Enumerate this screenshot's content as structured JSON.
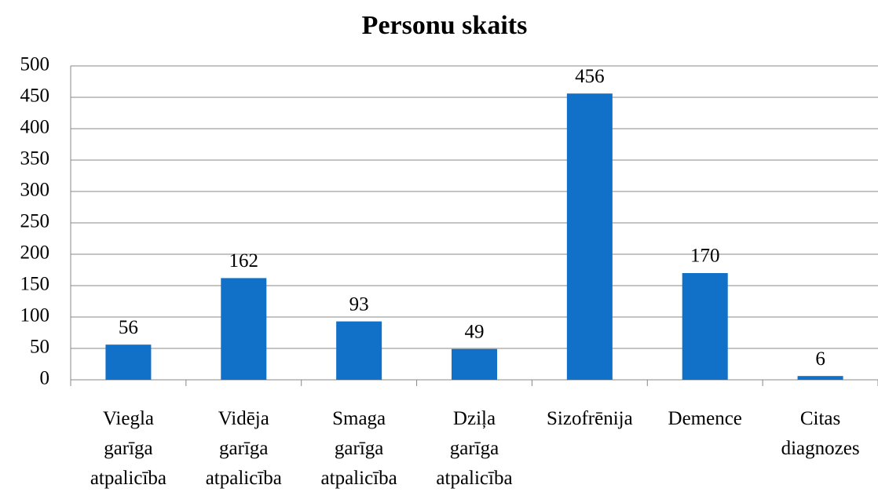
{
  "chart_data": {
    "type": "bar",
    "title": "Personu skaits",
    "categories": [
      "Viegla garīga atpalicība",
      "Vidēja garīga atpalicība",
      "Smaga garīga atpalicība",
      "Dziļa garīga atpalicība",
      "Sizofrēnija",
      "Demence",
      "Citas diagnozes"
    ],
    "values": [
      56,
      162,
      93,
      49,
      456,
      170,
      6
    ],
    "color": "#1170c8",
    "ylim": [
      0,
      500
    ],
    "yticks": [
      0,
      50,
      100,
      150,
      200,
      250,
      300,
      350,
      400,
      450,
      500
    ],
    "grid": true
  }
}
